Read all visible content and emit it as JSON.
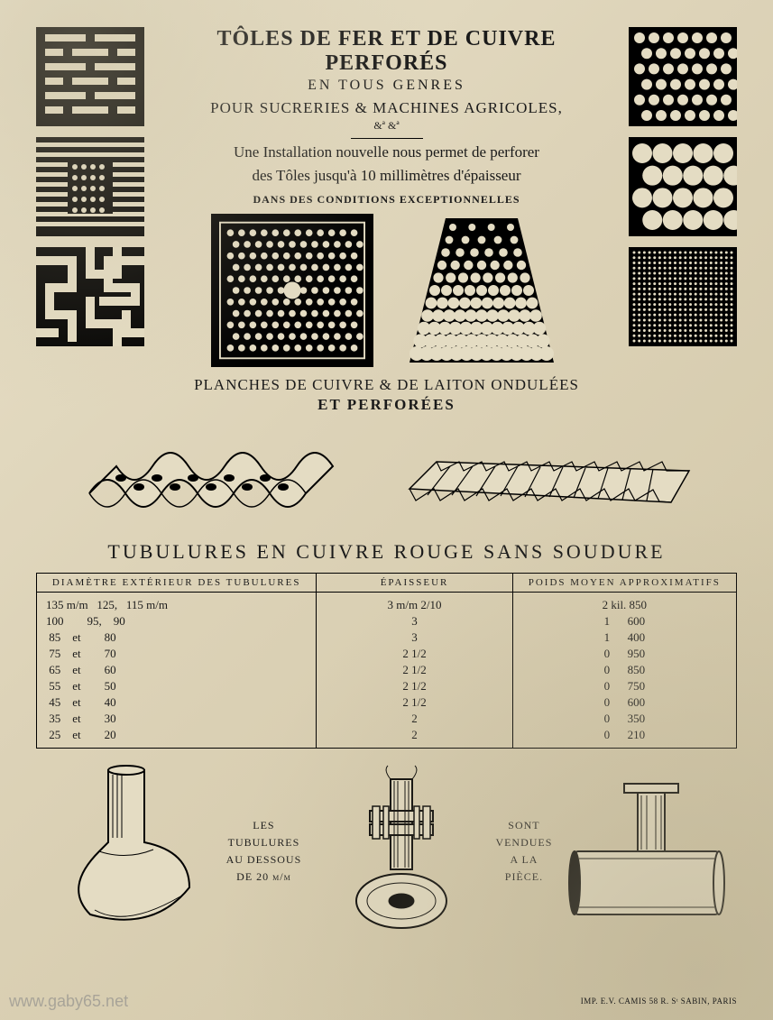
{
  "header": {
    "title": "TÔLES DE FER ET DE CUIVRE PERFORÉS",
    "subtitle": "EN TOUS GENRES",
    "line3": "POUR SUCRERIES & MACHINES AGRICOLES,",
    "ampersand": "&ª  &ª",
    "body1": "Une Installation nouvelle nous permet de perforer",
    "body2": "des Tôles jusqu'à 10 millimètres d'épaisseur",
    "conditions": "DANS DES CONDITIONS EXCEPTIONNELLES"
  },
  "swatches": {
    "left": [
      {
        "type": "slots-bars",
        "bg": "#000000",
        "fg": "#e4dcc3"
      },
      {
        "type": "stripes-dots",
        "bg": "#000000",
        "fg": "#e4dcc3"
      },
      {
        "type": "maze",
        "bg": "#000000",
        "fg": "#e4dcc3"
      }
    ],
    "right": [
      {
        "type": "small-dots",
        "bg": "#000000",
        "fg": "#e4dcc3"
      },
      {
        "type": "large-dots",
        "bg": "#000000",
        "fg": "#e4dcc3"
      },
      {
        "type": "micro-dots",
        "bg": "#000000",
        "fg": "#e4dcc3"
      }
    ],
    "center_panels": [
      {
        "type": "square-perforated-plate",
        "bg": "#000000",
        "fg": "#e4dcc3"
      },
      {
        "type": "trapezoid-perforated-plate",
        "bg": "#000000",
        "fg": "#e4dcc3"
      }
    ]
  },
  "planches": {
    "line1": "PLANCHES DE CUIVRE & DE LAITON ONDULÉES",
    "line2": "ET PERFORÉES"
  },
  "tubulures": {
    "title": "TUBULURES EN CUIVRE ROUGE SANS SOUDURE",
    "columns": [
      "DIAMÈTRE EXTÉRIEUR DES TUBULURES",
      "ÉPAISSEUR",
      "POIDS  MOYEN  APPROXIMATIFS"
    ],
    "rows": [
      [
        "135 m/m   125,   115 m/m",
        "3 m/m 2/10",
        "2 kil. 850"
      ],
      [
        "100        95,    90",
        "3",
        "1      600"
      ],
      [
        " 85    et        80",
        "3",
        "1      400"
      ],
      [
        " 75    et        70",
        "2 1/2",
        "0      950"
      ],
      [
        " 65    et        60",
        "2 1/2",
        "0      850"
      ],
      [
        " 55    et        50",
        "2 1/2",
        "0      750"
      ],
      [
        " 45    et        40",
        "2 1/2",
        "0      600"
      ],
      [
        " 35    et        30",
        "2",
        "0      350"
      ],
      [
        " 25    et        20",
        "2",
        "0      210"
      ]
    ]
  },
  "fittings": {
    "label_left_1": "LES TUBULURES",
    "label_left_2": "AU DESSOUS DE 20 m/m",
    "label_right_1": "SONT VENDUES",
    "label_right_2": "A LA PIÈCE."
  },
  "imprint": "IMP. E.V. CAMIS 58 R. Sᵗ SABIN, PARIS",
  "watermark": "www.gaby65.net",
  "colors": {
    "paper": "#e4dcc3",
    "ink": "#1a1a1a"
  }
}
